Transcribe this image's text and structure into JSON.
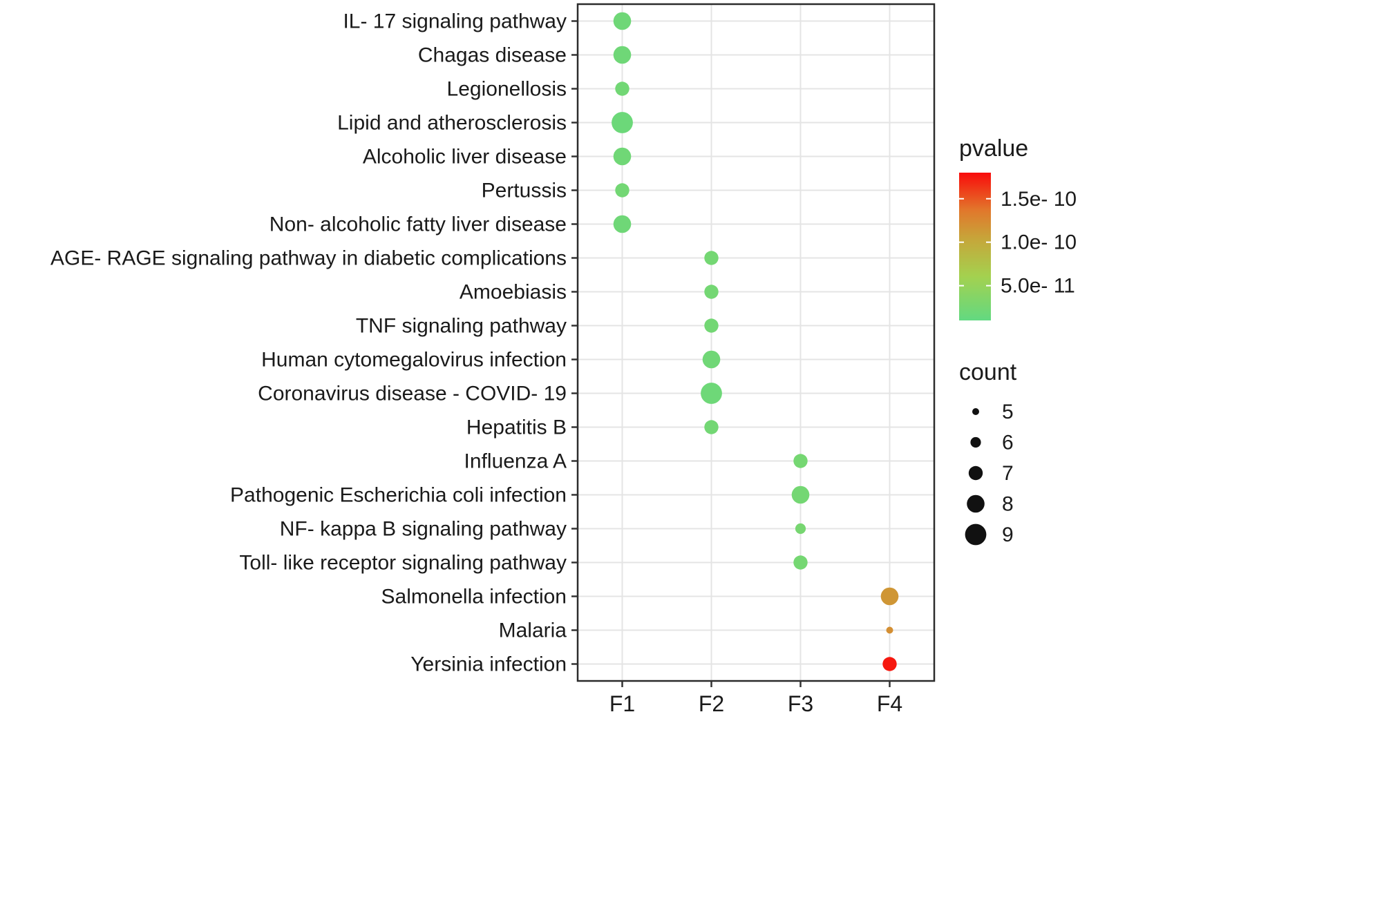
{
  "chart_data": {
    "type": "scatter",
    "subtype": "bubble-dotplot",
    "title": "",
    "xlabel": "",
    "ylabel": "",
    "grid": true,
    "legend_position": "right",
    "x_categories": [
      "F1",
      "F2",
      "F3",
      "F4"
    ],
    "y_categories": [
      "IL- 17 signaling pathway",
      "Chagas disease",
      "Legionellosis",
      "Lipid and atherosclerosis",
      "Alcoholic liver disease",
      "Pertussis",
      "Non- alcoholic fatty liver disease",
      "AGE- RAGE signaling pathway in diabetic complications",
      "Amoebiasis",
      "TNF signaling pathway",
      "Human cytomegalovirus infection",
      "Coronavirus disease - COVID- 19",
      "Hepatitis B",
      "Influenza A",
      "Pathogenic Escherichia coli infection",
      "NF- kappa B signaling pathway",
      "Toll- like receptor signaling pathway",
      "Salmonella infection",
      "Malaria",
      "Yersinia infection"
    ],
    "points": [
      {
        "pathway": "IL- 17 signaling pathway",
        "factor": "F1",
        "count": 8,
        "pvalue": 2e-11
      },
      {
        "pathway": "Chagas disease",
        "factor": "F1",
        "count": 8,
        "pvalue": 2e-11
      },
      {
        "pathway": "Legionellosis",
        "factor": "F1",
        "count": 7,
        "pvalue": 2.2e-11
      },
      {
        "pathway": "Lipid and atherosclerosis",
        "factor": "F1",
        "count": 9,
        "pvalue": 1.8e-11
      },
      {
        "pathway": "Alcoholic liver disease",
        "factor": "F1",
        "count": 8,
        "pvalue": 2.1e-11
      },
      {
        "pathway": "Pertussis",
        "factor": "F1",
        "count": 7,
        "pvalue": 2.3e-11
      },
      {
        "pathway": "Non- alcoholic fatty liver disease",
        "factor": "F1",
        "count": 8,
        "pvalue": 2e-11
      },
      {
        "pathway": "AGE- RAGE signaling pathway in diabetic complications",
        "factor": "F2",
        "count": 7,
        "pvalue": 2.4e-11
      },
      {
        "pathway": "Amoebiasis",
        "factor": "F2",
        "count": 7,
        "pvalue": 2.4e-11
      },
      {
        "pathway": "TNF signaling pathway",
        "factor": "F2",
        "count": 7,
        "pvalue": 2.3e-11
      },
      {
        "pathway": "Human cytomegalovirus infection",
        "factor": "F2",
        "count": 8,
        "pvalue": 2.1e-11
      },
      {
        "pathway": "Coronavirus disease - COVID- 19",
        "factor": "F2",
        "count": 9,
        "pvalue": 1.9e-11
      },
      {
        "pathway": "Hepatitis B",
        "factor": "F2",
        "count": 7,
        "pvalue": 2.3e-11
      },
      {
        "pathway": "Influenza A",
        "factor": "F3",
        "count": 7,
        "pvalue": 2.5e-11
      },
      {
        "pathway": "Pathogenic Escherichia coli infection",
        "factor": "F3",
        "count": 8,
        "pvalue": 2.4e-11
      },
      {
        "pathway": "NF- kappa B signaling pathway",
        "factor": "F3",
        "count": 6,
        "pvalue": 2.6e-11
      },
      {
        "pathway": "Toll- like receptor signaling pathway",
        "factor": "F3",
        "count": 7,
        "pvalue": 2.5e-11
      },
      {
        "pathway": "Salmonella infection",
        "factor": "F4",
        "count": 8,
        "pvalue": 1.15e-10
      },
      {
        "pathway": "Malaria",
        "factor": "F4",
        "count": 5,
        "pvalue": 1.2e-10
      },
      {
        "pathway": "Yersinia infection",
        "factor": "F4",
        "count": 7,
        "pvalue": 1.75e-10
      }
    ],
    "color_scale": {
      "title": "pvalue",
      "domain": [
        1e-11,
        1.8e-10
      ],
      "ticks": [
        {
          "value": 1.5e-10,
          "label": "1.5e- 10"
        },
        {
          "value": 1e-10,
          "label": "1.0e- 10"
        },
        {
          "value": 5e-11,
          "label": "5.0e- 11"
        }
      ],
      "stops": [
        {
          "t": 0.0,
          "color": "#62D981"
        },
        {
          "t": 0.3,
          "color": "#A4D14F"
        },
        {
          "t": 0.55,
          "color": "#C6A63A"
        },
        {
          "t": 0.75,
          "color": "#E2762B"
        },
        {
          "t": 1.0,
          "color": "#F90B0B"
        }
      ]
    },
    "size_scale": {
      "title": "count",
      "entries": [
        5,
        6,
        7,
        8,
        9
      ]
    },
    "style": {
      "panel_border_color": "#2B2B2B",
      "gridline_color": "#E4E4E4",
      "tick_color": "#333333",
      "text_color": "#1A1A1A",
      "legend_dot_color": "#111111",
      "background": "#FFFFFF"
    }
  }
}
